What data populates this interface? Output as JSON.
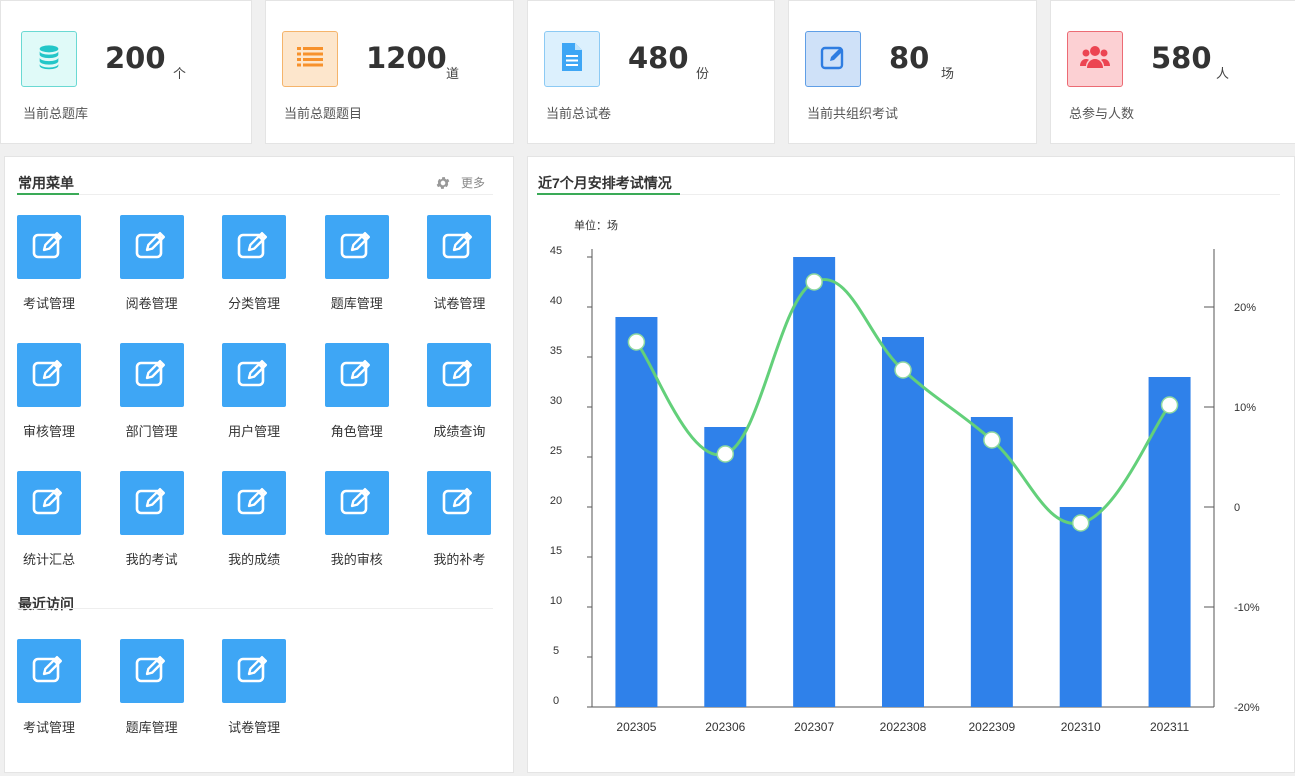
{
  "stats": [
    {
      "value": "200",
      "unit": "个",
      "label": "当前总题库",
      "icon": "database-icon",
      "color": "#23c6c8",
      "bg": "#e0faf8",
      "border": "#6ad9d3"
    },
    {
      "value": "1200",
      "unit": "道",
      "label": "当前总题题目",
      "icon": "list-icon",
      "color": "#f7912b",
      "bg": "#fde6cc",
      "border": "#f5b46b"
    },
    {
      "value": "480",
      "unit": "份",
      "label": "当前总试卷",
      "icon": "document-icon",
      "color": "#3ea6f5",
      "bg": "#dcf0fd",
      "border": "#8ccaf4"
    },
    {
      "value": "80",
      "unit": "场",
      "label": "当前共组织考试",
      "icon": "edit-icon",
      "color": "#2f7de1",
      "bg": "#cfe1f8",
      "border": "#5f9ee6"
    },
    {
      "value": "580",
      "unit": "人",
      "label": "总参与人数",
      "icon": "users-icon",
      "color": "#ec4552",
      "bg": "#fcd0d3",
      "border": "#ec6b74"
    }
  ],
  "menu": {
    "title": "常用菜单",
    "more": "更多",
    "items": [
      "考试管理",
      "阅卷管理",
      "分类管理",
      "题库管理",
      "试卷管理",
      "审核管理",
      "部门管理",
      "用户管理",
      "角色管理",
      "成绩查询",
      "统计汇总",
      "我的考试",
      "我的成绩",
      "我的审核",
      "我的补考"
    ]
  },
  "recent": {
    "title": "最近访问",
    "items": [
      "考试管理",
      "题库管理",
      "试卷管理"
    ]
  },
  "chart": {
    "title": "近7个月安排考试情况",
    "unit_label": "单位：场"
  },
  "chart_data": {
    "type": "bar",
    "categories": [
      "202305",
      "202306",
      "202307",
      "2022308",
      "2022309",
      "202310",
      "202311"
    ],
    "series": [
      {
        "type": "bar",
        "axis": "left",
        "values": [
          39,
          28,
          45,
          37,
          29,
          20,
          33
        ],
        "color": "#2f81ea"
      },
      {
        "type": "line",
        "axis": "right",
        "smooth": true,
        "values": [
          16.5,
          5.3,
          22.5,
          13.7,
          6.7,
          -1.6,
          10.2
        ],
        "color": "#63d07a"
      }
    ],
    "y_left": {
      "min": 0,
      "max": 45,
      "ticks": [
        0,
        5,
        10,
        15,
        20,
        25,
        30,
        35,
        40,
        45
      ]
    },
    "y_right": {
      "min": -20,
      "max": 25,
      "ticks": [
        -20,
        -10,
        0,
        10,
        20
      ],
      "tick_labels": [
        "-20%",
        "-10%",
        "0",
        "10%",
        "20%"
      ]
    }
  }
}
